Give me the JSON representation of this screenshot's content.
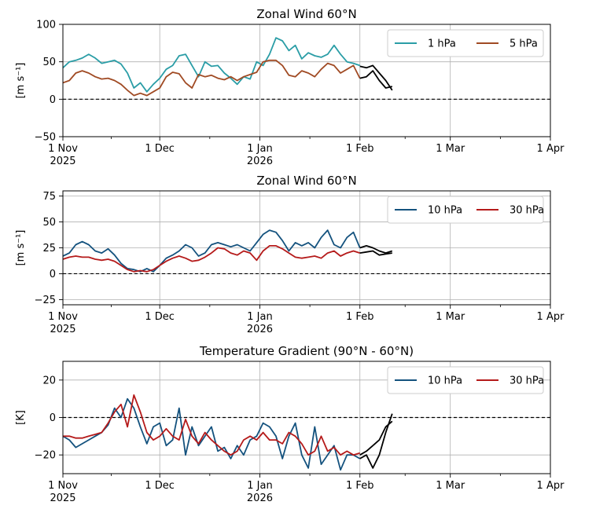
{
  "chart_data": [
    {
      "type": "line",
      "title": "Zonal Wind 60°N",
      "ylabel": "[m s⁻¹]",
      "ylim": [
        -50,
        100
      ],
      "yticks": [
        -50,
        0,
        50,
        100
      ],
      "xlim": [
        "2025-11-01",
        "2026-03-31"
      ],
      "xtick_labels": [
        {
          "date": "2025-11-01",
          "line1": "1 Nov",
          "line2": "2025"
        },
        {
          "date": "2025-12-01",
          "line1": "1 Dec",
          "line2": ""
        },
        {
          "date": "2026-01-01",
          "line1": "1 Jan",
          "line2": "2026"
        },
        {
          "date": "2026-02-01",
          "line1": "1 Feb",
          "line2": ""
        },
        {
          "date": "2026-03-01",
          "line1": "1 Mar",
          "line2": ""
        },
        {
          "date": "2026-04-01",
          "line1": "1 Apr",
          "line2": ""
        }
      ],
      "zero_line": true,
      "grid": true,
      "legend_position": "top-right",
      "series": [
        {
          "name": "1 hPa",
          "color": "#2a9da6",
          "x": [
            "2025-11-01",
            "2025-11-03",
            "2025-11-05",
            "2025-11-07",
            "2025-11-09",
            "2025-11-11",
            "2025-11-13",
            "2025-11-15",
            "2025-11-17",
            "2025-11-19",
            "2025-11-21",
            "2025-11-23",
            "2025-11-25",
            "2025-11-27",
            "2025-11-29",
            "2025-12-01",
            "2025-12-03",
            "2025-12-05",
            "2025-12-07",
            "2025-12-09",
            "2025-12-11",
            "2025-12-13",
            "2025-12-15",
            "2025-12-17",
            "2025-12-19",
            "2025-12-21",
            "2025-12-23",
            "2025-12-25",
            "2025-12-27",
            "2025-12-29",
            "2025-12-31",
            "2026-01-02",
            "2026-01-04",
            "2026-01-06",
            "2026-01-08",
            "2026-01-10",
            "2026-01-12",
            "2026-01-14",
            "2026-01-16",
            "2026-01-18",
            "2026-01-20",
            "2026-01-22",
            "2026-01-24",
            "2026-01-26",
            "2026-01-28",
            "2026-01-30",
            "2026-02-01"
          ],
          "y": [
            42,
            50,
            52,
            55,
            60,
            55,
            48,
            50,
            52,
            47,
            35,
            15,
            22,
            10,
            20,
            28,
            40,
            45,
            58,
            60,
            45,
            30,
            50,
            44,
            45,
            35,
            28,
            20,
            30,
            27,
            50,
            45,
            60,
            82,
            78,
            65,
            72,
            54,
            62,
            58,
            56,
            60,
            72,
            60,
            50,
            48,
            45
          ]
        },
        {
          "name": "5 hPa",
          "color": "#a04a23",
          "x": [
            "2025-11-01",
            "2025-11-03",
            "2025-11-05",
            "2025-11-07",
            "2025-11-09",
            "2025-11-11",
            "2025-11-13",
            "2025-11-15",
            "2025-11-17",
            "2025-11-19",
            "2025-11-21",
            "2025-11-23",
            "2025-11-25",
            "2025-11-27",
            "2025-11-29",
            "2025-12-01",
            "2025-12-03",
            "2025-12-05",
            "2025-12-07",
            "2025-12-09",
            "2025-12-11",
            "2025-12-13",
            "2025-12-15",
            "2025-12-17",
            "2025-12-19",
            "2025-12-21",
            "2025-12-23",
            "2025-12-25",
            "2025-12-27",
            "2025-12-29",
            "2025-12-31",
            "2026-01-02",
            "2026-01-04",
            "2026-01-06",
            "2026-01-08",
            "2026-01-10",
            "2026-01-12",
            "2026-01-14",
            "2026-01-16",
            "2026-01-18",
            "2026-01-20",
            "2026-01-22",
            "2026-01-24",
            "2026-01-26",
            "2026-01-28",
            "2026-01-30",
            "2026-02-01"
          ],
          "y": [
            22,
            25,
            35,
            38,
            35,
            30,
            27,
            28,
            25,
            20,
            12,
            5,
            8,
            5,
            10,
            15,
            30,
            36,
            34,
            22,
            15,
            33,
            30,
            32,
            28,
            26,
            30,
            25,
            30,
            33,
            36,
            50,
            52,
            52,
            45,
            32,
            30,
            38,
            35,
            30,
            40,
            48,
            45,
            35,
            40,
            45,
            28
          ]
        },
        {
          "name": "",
          "color": "#000000",
          "forecast": true,
          "x": [
            "2026-02-01",
            "2026-02-03",
            "2026-02-05",
            "2026-02-07",
            "2026-02-09",
            "2026-02-11"
          ],
          "y": [
            44,
            42,
            45,
            35,
            25,
            12
          ]
        },
        {
          "name": "",
          "color": "#000000",
          "forecast": true,
          "x": [
            "2026-02-01",
            "2026-02-03",
            "2026-02-05",
            "2026-02-07",
            "2026-02-09",
            "2026-02-11"
          ],
          "y": [
            28,
            30,
            38,
            25,
            15,
            17
          ]
        }
      ]
    },
    {
      "type": "line",
      "title": "Zonal Wind 60°N",
      "ylabel": "[m s⁻¹]",
      "ylim": [
        -30,
        80
      ],
      "yticks": [
        -25,
        0,
        25,
        50,
        75
      ],
      "xlim": [
        "2025-11-01",
        "2026-03-31"
      ],
      "xtick_labels": [
        {
          "date": "2025-11-01",
          "line1": "1 Nov",
          "line2": "2025"
        },
        {
          "date": "2025-12-01",
          "line1": "1 Dec",
          "line2": ""
        },
        {
          "date": "2026-01-01",
          "line1": "1 Jan",
          "line2": "2026"
        },
        {
          "date": "2026-02-01",
          "line1": "1 Feb",
          "line2": ""
        },
        {
          "date": "2026-03-01",
          "line1": "1 Mar",
          "line2": ""
        },
        {
          "date": "2026-04-01",
          "line1": "1 Apr",
          "line2": ""
        }
      ],
      "zero_line": true,
      "grid": true,
      "legend_position": "top-right",
      "series": [
        {
          "name": "10 hPa",
          "color": "#14527e",
          "x": [
            "2025-11-01",
            "2025-11-03",
            "2025-11-05",
            "2025-11-07",
            "2025-11-09",
            "2025-11-11",
            "2025-11-13",
            "2025-11-15",
            "2025-11-17",
            "2025-11-19",
            "2025-11-21",
            "2025-11-23",
            "2025-11-25",
            "2025-11-27",
            "2025-11-29",
            "2025-12-01",
            "2025-12-03",
            "2025-12-05",
            "2025-12-07",
            "2025-12-09",
            "2025-12-11",
            "2025-12-13",
            "2025-12-15",
            "2025-12-17",
            "2025-12-19",
            "2025-12-21",
            "2025-12-23",
            "2025-12-25",
            "2025-12-27",
            "2025-12-29",
            "2025-12-31",
            "2026-01-02",
            "2026-01-04",
            "2026-01-06",
            "2026-01-08",
            "2026-01-10",
            "2026-01-12",
            "2026-01-14",
            "2026-01-16",
            "2026-01-18",
            "2026-01-20",
            "2026-01-22",
            "2026-01-24",
            "2026-01-26",
            "2026-01-28",
            "2026-01-30",
            "2026-02-01"
          ],
          "y": [
            17,
            20,
            28,
            31,
            28,
            22,
            20,
            24,
            18,
            10,
            5,
            4,
            2,
            5,
            2,
            8,
            15,
            18,
            22,
            28,
            25,
            17,
            20,
            28,
            30,
            28,
            26,
            28,
            25,
            22,
            30,
            38,
            42,
            40,
            32,
            22,
            30,
            27,
            30,
            25,
            35,
            42,
            28,
            25,
            35,
            40,
            25
          ]
        },
        {
          "name": "30 hPa",
          "color": "#b51a1a",
          "x": [
            "2025-11-01",
            "2025-11-03",
            "2025-11-05",
            "2025-11-07",
            "2025-11-09",
            "2025-11-11",
            "2025-11-13",
            "2025-11-15",
            "2025-11-17",
            "2025-11-19",
            "2025-11-21",
            "2025-11-23",
            "2025-11-25",
            "2025-11-27",
            "2025-11-29",
            "2025-12-01",
            "2025-12-03",
            "2025-12-05",
            "2025-12-07",
            "2025-12-09",
            "2025-12-11",
            "2025-12-13",
            "2025-12-15",
            "2025-12-17",
            "2025-12-19",
            "2025-12-21",
            "2025-12-23",
            "2025-12-25",
            "2025-12-27",
            "2025-12-29",
            "2025-12-31",
            "2026-01-02",
            "2026-01-04",
            "2026-01-06",
            "2026-01-08",
            "2026-01-10",
            "2026-01-12",
            "2026-01-14",
            "2026-01-16",
            "2026-01-18",
            "2026-01-20",
            "2026-01-22",
            "2026-01-24",
            "2026-01-26",
            "2026-01-28",
            "2026-01-30",
            "2026-02-01"
          ],
          "y": [
            14,
            16,
            17,
            16,
            16,
            14,
            13,
            14,
            12,
            8,
            4,
            2,
            3,
            2,
            4,
            8,
            12,
            15,
            17,
            15,
            12,
            13,
            16,
            20,
            25,
            24,
            20,
            18,
            22,
            20,
            13,
            22,
            27,
            27,
            24,
            20,
            16,
            15,
            16,
            17,
            15,
            20,
            22,
            17,
            20,
            22,
            20
          ]
        },
        {
          "name": "",
          "color": "#000000",
          "forecast": true,
          "x": [
            "2026-02-01",
            "2026-02-03",
            "2026-02-05",
            "2026-02-07",
            "2026-02-09",
            "2026-02-11"
          ],
          "y": [
            25,
            27,
            25,
            22,
            20,
            22
          ]
        },
        {
          "name": "",
          "color": "#000000",
          "forecast": true,
          "x": [
            "2026-02-01",
            "2026-02-03",
            "2026-02-05",
            "2026-02-07",
            "2026-02-09",
            "2026-02-11"
          ],
          "y": [
            20,
            21,
            22,
            18,
            19,
            20
          ]
        }
      ]
    },
    {
      "type": "line",
      "title": "Temperature Gradient (90°N - 60°N)",
      "ylabel": "[K]",
      "ylim": [
        -30,
        30
      ],
      "yticks": [
        -20,
        0,
        20
      ],
      "xlim": [
        "2025-11-01",
        "2026-03-31"
      ],
      "xtick_labels": [
        {
          "date": "2025-11-01",
          "line1": "1 Nov",
          "line2": "2025"
        },
        {
          "date": "2025-12-01",
          "line1": "1 Dec",
          "line2": ""
        },
        {
          "date": "2026-01-01",
          "line1": "1 Jan",
          "line2": "2026"
        },
        {
          "date": "2026-02-01",
          "line1": "1 Feb",
          "line2": ""
        },
        {
          "date": "2026-03-01",
          "line1": "1 Mar",
          "line2": ""
        },
        {
          "date": "2026-04-01",
          "line1": "1 Apr",
          "line2": ""
        }
      ],
      "zero_line": true,
      "grid": true,
      "legend_position": "top-right",
      "series": [
        {
          "name": "10 hPa",
          "color": "#14527e",
          "x": [
            "2025-11-01",
            "2025-11-03",
            "2025-11-05",
            "2025-11-07",
            "2025-11-09",
            "2025-11-11",
            "2025-11-13",
            "2025-11-15",
            "2025-11-17",
            "2025-11-19",
            "2025-11-21",
            "2025-11-23",
            "2025-11-25",
            "2025-11-27",
            "2025-11-29",
            "2025-12-01",
            "2025-12-03",
            "2025-12-05",
            "2025-12-07",
            "2025-12-09",
            "2025-12-11",
            "2025-12-13",
            "2025-12-15",
            "2025-12-17",
            "2025-12-19",
            "2025-12-21",
            "2025-12-23",
            "2025-12-25",
            "2025-12-27",
            "2025-12-29",
            "2025-12-31",
            "2026-01-02",
            "2026-01-04",
            "2026-01-06",
            "2026-01-08",
            "2026-01-10",
            "2026-01-12",
            "2026-01-14",
            "2026-01-16",
            "2026-01-18",
            "2026-01-20",
            "2026-01-22",
            "2026-01-24",
            "2026-01-26",
            "2026-01-28",
            "2026-01-30",
            "2026-02-01"
          ],
          "y": [
            -10,
            -12,
            -16,
            -14,
            -12,
            -10,
            -8,
            -4,
            5,
            0,
            10,
            5,
            -5,
            -14,
            -5,
            -3,
            -15,
            -12,
            5,
            -20,
            -5,
            -15,
            -10,
            -5,
            -18,
            -16,
            -22,
            -15,
            -20,
            -12,
            -10,
            -3,
            -5,
            -10,
            -22,
            -10,
            -3,
            -20,
            -27,
            -5,
            -25,
            -20,
            -15,
            -28,
            -20,
            -20,
            -22
          ]
        },
        {
          "name": "30 hPa",
          "color": "#b51a1a",
          "x": [
            "2025-11-01",
            "2025-11-03",
            "2025-11-05",
            "2025-11-07",
            "2025-11-09",
            "2025-11-11",
            "2025-11-13",
            "2025-11-15",
            "2025-11-17",
            "2025-11-19",
            "2025-11-21",
            "2025-11-23",
            "2025-11-25",
            "2025-11-27",
            "2025-11-29",
            "2025-12-01",
            "2025-12-03",
            "2025-12-05",
            "2025-12-07",
            "2025-12-09",
            "2025-12-11",
            "2025-12-13",
            "2025-12-15",
            "2025-12-17",
            "2025-12-19",
            "2025-12-21",
            "2025-12-23",
            "2025-12-25",
            "2025-12-27",
            "2025-12-29",
            "2025-12-31",
            "2026-01-02",
            "2026-01-04",
            "2026-01-06",
            "2026-01-08",
            "2026-01-10",
            "2026-01-12",
            "2026-01-14",
            "2026-01-16",
            "2026-01-18",
            "2026-01-20",
            "2026-01-22",
            "2026-01-24",
            "2026-01-26",
            "2026-01-28",
            "2026-01-30",
            "2026-02-01"
          ],
          "y": [
            -10,
            -10,
            -11,
            -11,
            -10,
            -9,
            -8,
            -3,
            3,
            7,
            -5,
            12,
            3,
            -8,
            -12,
            -10,
            -6,
            -10,
            -12,
            -1,
            -10,
            -14,
            -8,
            -12,
            -15,
            -18,
            -20,
            -18,
            -12,
            -10,
            -12,
            -8,
            -12,
            -12,
            -14,
            -8,
            -10,
            -14,
            -20,
            -18,
            -10,
            -18,
            -16,
            -20,
            -18,
            -20,
            -19
          ]
        },
        {
          "name": "",
          "color": "#000000",
          "forecast": true,
          "x": [
            "2026-02-01",
            "2026-02-03",
            "2026-02-05",
            "2026-02-07",
            "2026-02-09",
            "2026-02-11"
          ],
          "y": [
            -20,
            -18,
            -15,
            -12,
            -5,
            -2
          ]
        },
        {
          "name": "",
          "color": "#000000",
          "forecast": true,
          "x": [
            "2026-02-01",
            "2026-02-03",
            "2026-02-05",
            "2026-02-07",
            "2026-02-09",
            "2026-02-11"
          ],
          "y": [
            -22,
            -20,
            -27,
            -20,
            -8,
            2
          ]
        }
      ]
    }
  ]
}
